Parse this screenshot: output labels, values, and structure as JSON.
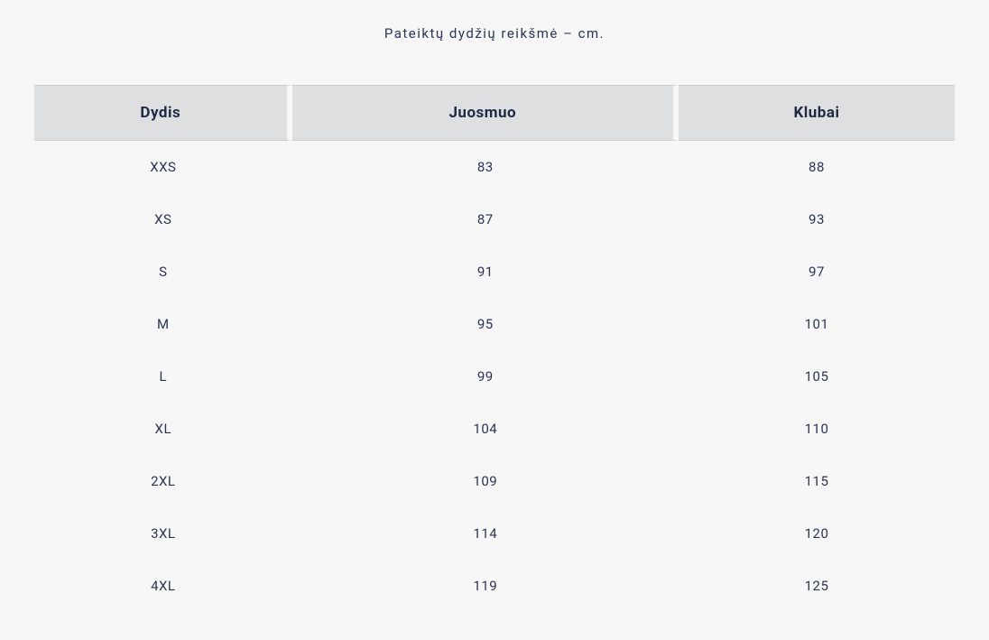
{
  "subtitle": "Pateiktų dydžių reikšmė – cm.",
  "table": {
    "columns": [
      "Dydis",
      "Juosmuo",
      "Klubai"
    ],
    "rows": [
      [
        "XXS",
        "83",
        "88"
      ],
      [
        "XS",
        "87",
        "93"
      ],
      [
        "S",
        "91",
        "97"
      ],
      [
        "M",
        "95",
        "101"
      ],
      [
        "L",
        "99",
        "105"
      ],
      [
        "XL",
        "104",
        "110"
      ],
      [
        "2XL",
        "109",
        "115"
      ],
      [
        "3XL",
        "114",
        "120"
      ],
      [
        "4XL",
        "119",
        "125"
      ]
    ],
    "header_bg": "#dedfe0",
    "header_text_color": "#1f2a44",
    "body_text_color": "#2b3552",
    "page_bg": "#f7f7f7",
    "column_gap_color": "#f7f7f7",
    "header_border_color": "#cfcfcf",
    "header_fontsize": 17,
    "body_fontsize": 15,
    "subtitle_fontsize": 15,
    "row_padding_y": 20,
    "col_widths_pct": [
      28,
      42,
      30
    ]
  }
}
